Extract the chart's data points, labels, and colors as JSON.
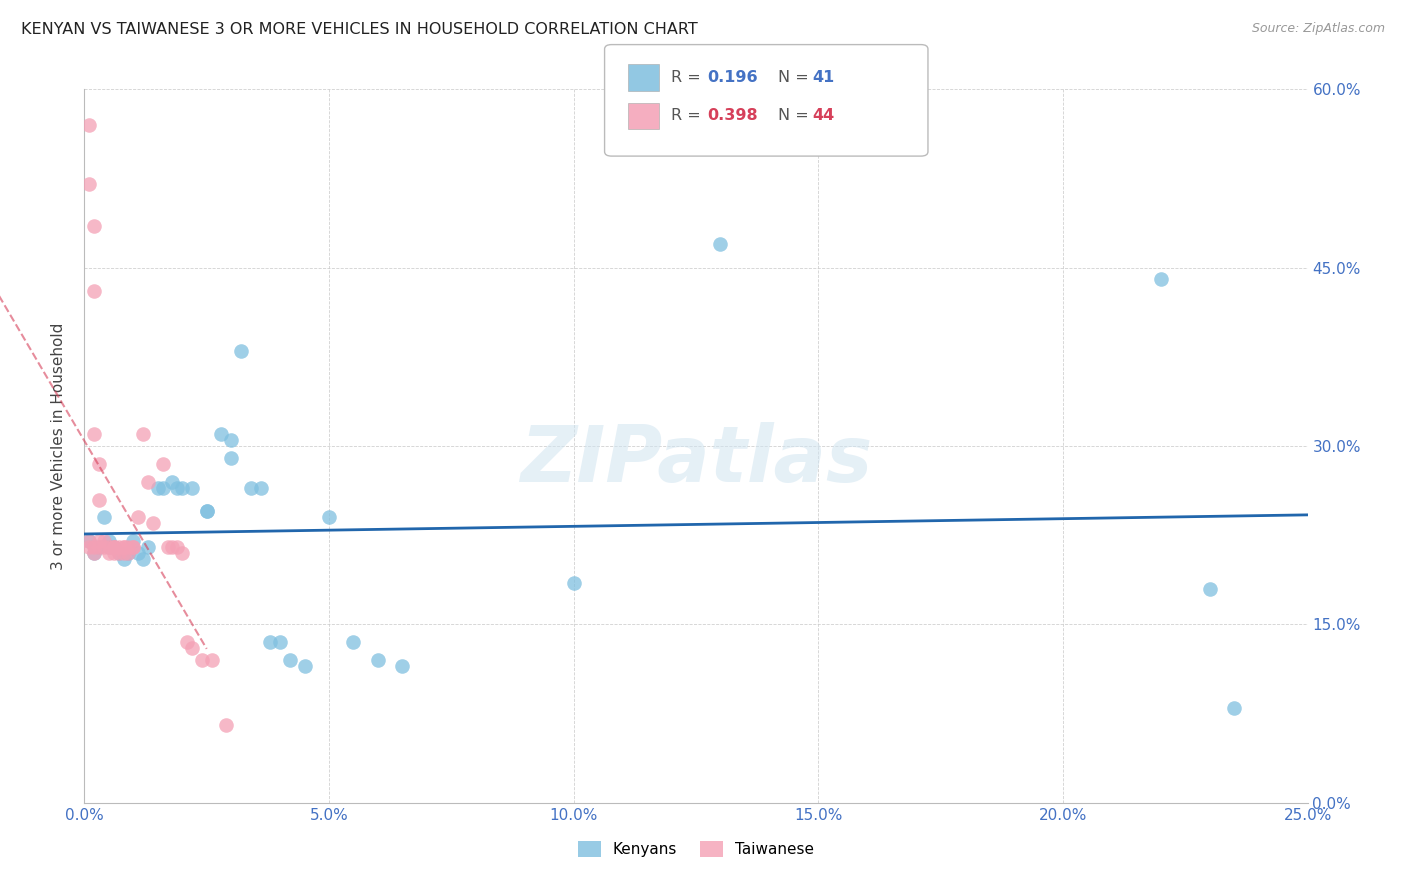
{
  "title": "KENYAN VS TAIWANESE 3 OR MORE VEHICLES IN HOUSEHOLD CORRELATION CHART",
  "source": "Source: ZipAtlas.com",
  "ylabel": "3 or more Vehicles in Household",
  "r_kenyan": 0.196,
  "n_kenyan": 41,
  "r_taiwanese": 0.398,
  "n_taiwanese": 44,
  "xlim": [
    0.0,
    0.25
  ],
  "ylim": [
    0.0,
    0.6
  ],
  "xticks": [
    0.0,
    0.05,
    0.1,
    0.15,
    0.2,
    0.25
  ],
  "yticks": [
    0.0,
    0.15,
    0.3,
    0.45,
    0.6
  ],
  "xtick_labels": [
    "0.0%",
    "5.0%",
    "10.0%",
    "15.0%",
    "20.0%",
    "25.0%"
  ],
  "ytick_labels": [
    "0.0%",
    "15.0%",
    "30.0%",
    "45.0%",
    "60.0%"
  ],
  "color_kenyan": "#7fbfdf",
  "color_taiwanese": "#f4a0b5",
  "trendline_kenyan_color": "#2166ac",
  "trendline_taiwanese_color": "#d6405a",
  "background_color": "#ffffff",
  "watermark": "ZIPatlas",
  "kenyan_x": [
    0.001,
    0.002,
    0.003,
    0.004,
    0.005,
    0.005,
    0.006,
    0.007,
    0.008,
    0.009,
    0.01,
    0.011,
    0.012,
    0.013,
    0.015,
    0.016,
    0.018,
    0.019,
    0.02,
    0.022,
    0.025,
    0.025,
    0.028,
    0.03,
    0.03,
    0.032,
    0.034,
    0.036,
    0.038,
    0.04,
    0.042,
    0.045,
    0.05,
    0.055,
    0.06,
    0.065,
    0.1,
    0.13,
    0.22,
    0.23,
    0.235
  ],
  "kenyan_y": [
    0.22,
    0.21,
    0.215,
    0.24,
    0.22,
    0.215,
    0.215,
    0.21,
    0.205,
    0.21,
    0.22,
    0.21,
    0.205,
    0.215,
    0.265,
    0.265,
    0.27,
    0.265,
    0.265,
    0.265,
    0.245,
    0.245,
    0.31,
    0.305,
    0.29,
    0.38,
    0.265,
    0.265,
    0.135,
    0.135,
    0.12,
    0.115,
    0.24,
    0.135,
    0.12,
    0.115,
    0.185,
    0.47,
    0.44,
    0.18,
    0.08
  ],
  "taiwanese_x": [
    0.001,
    0.001,
    0.001,
    0.001,
    0.002,
    0.002,
    0.002,
    0.002,
    0.002,
    0.003,
    0.003,
    0.003,
    0.003,
    0.004,
    0.004,
    0.005,
    0.005,
    0.006,
    0.006,
    0.006,
    0.006,
    0.007,
    0.007,
    0.008,
    0.008,
    0.008,
    0.009,
    0.009,
    0.01,
    0.01,
    0.011,
    0.012,
    0.013,
    0.014,
    0.016,
    0.017,
    0.018,
    0.019,
    0.02,
    0.021,
    0.022,
    0.024,
    0.026,
    0.029
  ],
  "taiwanese_y": [
    0.57,
    0.52,
    0.22,
    0.215,
    0.485,
    0.43,
    0.31,
    0.215,
    0.21,
    0.285,
    0.255,
    0.22,
    0.215,
    0.22,
    0.215,
    0.215,
    0.21,
    0.215,
    0.215,
    0.21,
    0.215,
    0.215,
    0.21,
    0.215,
    0.215,
    0.21,
    0.215,
    0.21,
    0.215,
    0.215,
    0.24,
    0.31,
    0.27,
    0.235,
    0.285,
    0.215,
    0.215,
    0.215,
    0.21,
    0.135,
    0.13,
    0.12,
    0.12,
    0.065
  ]
}
